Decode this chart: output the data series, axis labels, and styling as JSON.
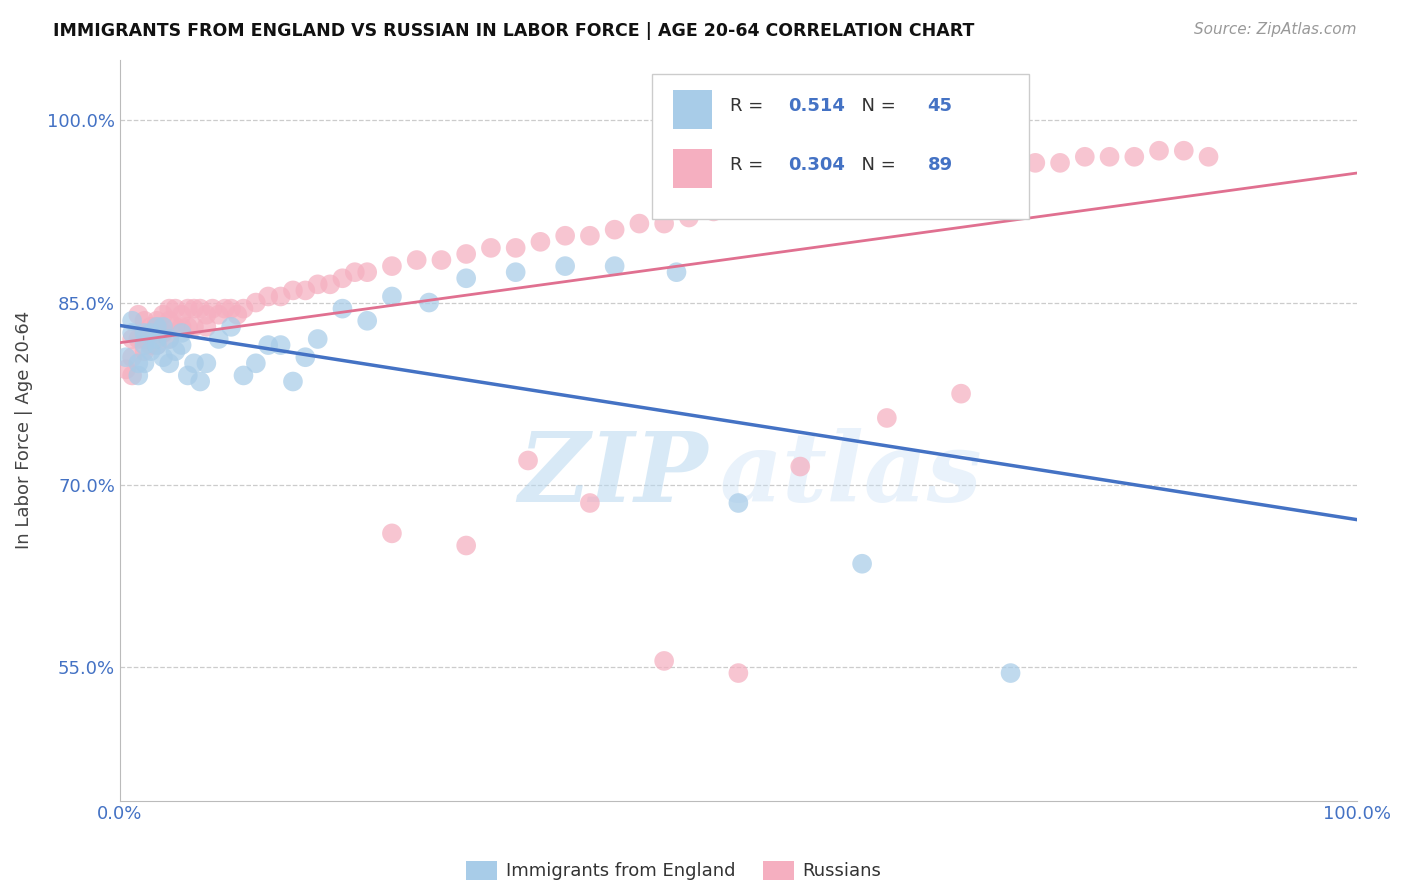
{
  "title": "IMMIGRANTS FROM ENGLAND VS RUSSIAN IN LABOR FORCE | AGE 20-64 CORRELATION CHART",
  "source": "Source: ZipAtlas.com",
  "ylabel": "In Labor Force | Age 20-64",
  "legend_england": "Immigrants from England",
  "legend_russians": "Russians",
  "r_england": "0.514",
  "n_england": "45",
  "r_russians": "0.304",
  "n_russians": "89",
  "color_england": "#a8cce8",
  "color_russians": "#f5afc0",
  "line_england": "#4472c4",
  "line_russians": "#e07090",
  "watermark_zip": "ZIP",
  "watermark_atlas": "atlas",
  "xlim": [
    0.0,
    1.0
  ],
  "ylim": [
    0.44,
    1.05
  ],
  "xticklabels": [
    "0.0%",
    "100.0%"
  ],
  "yticks": [
    0.55,
    0.7,
    0.85,
    1.0
  ],
  "yticklabels": [
    "55.0%",
    "70.0%",
    "85.0%",
    "100.0%"
  ],
  "england_x": [
    0.005,
    0.01,
    0.01,
    0.015,
    0.015,
    0.02,
    0.02,
    0.02,
    0.025,
    0.025,
    0.03,
    0.03,
    0.03,
    0.035,
    0.035,
    0.04,
    0.04,
    0.045,
    0.05,
    0.05,
    0.055,
    0.06,
    0.065,
    0.07,
    0.08,
    0.09,
    0.1,
    0.11,
    0.12,
    0.13,
    0.14,
    0.15,
    0.16,
    0.18,
    0.2,
    0.22,
    0.25,
    0.28,
    0.32,
    0.36,
    0.4,
    0.45,
    0.5,
    0.6,
    0.72
  ],
  "england_y": [
    0.805,
    0.825,
    0.835,
    0.79,
    0.8,
    0.825,
    0.815,
    0.8,
    0.825,
    0.81,
    0.83,
    0.82,
    0.815,
    0.805,
    0.83,
    0.8,
    0.82,
    0.81,
    0.825,
    0.815,
    0.79,
    0.8,
    0.785,
    0.8,
    0.82,
    0.83,
    0.79,
    0.8,
    0.815,
    0.815,
    0.785,
    0.805,
    0.82,
    0.845,
    0.835,
    0.855,
    0.85,
    0.87,
    0.875,
    0.88,
    0.88,
    0.875,
    0.685,
    0.635,
    0.545
  ],
  "russians_x": [
    0.005,
    0.01,
    0.01,
    0.01,
    0.015,
    0.015,
    0.02,
    0.02,
    0.02,
    0.025,
    0.025,
    0.03,
    0.03,
    0.03,
    0.035,
    0.035,
    0.04,
    0.04,
    0.04,
    0.045,
    0.045,
    0.05,
    0.05,
    0.055,
    0.055,
    0.06,
    0.06,
    0.065,
    0.07,
    0.07,
    0.075,
    0.08,
    0.085,
    0.09,
    0.095,
    0.1,
    0.11,
    0.12,
    0.13,
    0.14,
    0.15,
    0.16,
    0.17,
    0.18,
    0.19,
    0.2,
    0.22,
    0.24,
    0.26,
    0.28,
    0.3,
    0.32,
    0.34,
    0.36,
    0.38,
    0.4,
    0.42,
    0.44,
    0.46,
    0.48,
    0.5,
    0.52,
    0.54,
    0.56,
    0.58,
    0.6,
    0.62,
    0.64,
    0.66,
    0.68,
    0.7,
    0.72,
    0.74,
    0.76,
    0.78,
    0.8,
    0.82,
    0.84,
    0.86,
    0.88,
    0.22,
    0.28,
    0.33,
    0.38,
    0.44,
    0.5,
    0.55,
    0.62,
    0.68
  ],
  "russians_y": [
    0.795,
    0.82,
    0.805,
    0.79,
    0.84,
    0.82,
    0.835,
    0.82,
    0.81,
    0.83,
    0.815,
    0.835,
    0.83,
    0.815,
    0.84,
    0.825,
    0.845,
    0.835,
    0.82,
    0.845,
    0.83,
    0.84,
    0.83,
    0.845,
    0.83,
    0.845,
    0.83,
    0.845,
    0.84,
    0.83,
    0.845,
    0.84,
    0.845,
    0.845,
    0.84,
    0.845,
    0.85,
    0.855,
    0.855,
    0.86,
    0.86,
    0.865,
    0.865,
    0.87,
    0.875,
    0.875,
    0.88,
    0.885,
    0.885,
    0.89,
    0.895,
    0.895,
    0.9,
    0.905,
    0.905,
    0.91,
    0.915,
    0.915,
    0.92,
    0.925,
    0.93,
    0.93,
    0.935,
    0.94,
    0.94,
    0.945,
    0.945,
    0.95,
    0.955,
    0.955,
    0.96,
    0.965,
    0.965,
    0.965,
    0.97,
    0.97,
    0.97,
    0.975,
    0.975,
    0.97,
    0.66,
    0.65,
    0.72,
    0.685,
    0.555,
    0.545,
    0.715,
    0.755,
    0.775
  ]
}
